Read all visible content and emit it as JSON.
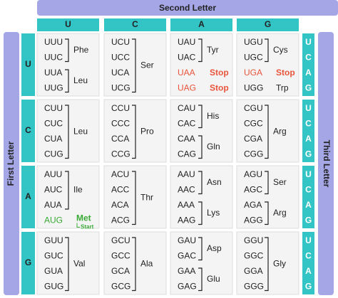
{
  "header": {
    "second_letter": "Second Letter",
    "columns": [
      "U",
      "C",
      "A",
      "G"
    ]
  },
  "first_letter_label": "First Letter",
  "third_letter_label": "Third Letter",
  "rows": [
    {
      "letter": "U",
      "third_letters": [
        "U",
        "C",
        "A",
        "G"
      ],
      "cells": [
        {
          "groups": [
            {
              "codons": [
                "UUU",
                "UUC"
              ],
              "label": "Phe"
            },
            {
              "codons": [
                "UUA",
                "UUG"
              ],
              "label": "Leu"
            }
          ]
        },
        {
          "groups": [
            {
              "codons": [
                "UCU",
                "UCC",
                "UCA",
                "UCG"
              ],
              "label": "Ser"
            }
          ]
        },
        {
          "groups": [
            {
              "codons": [
                "UAU",
                "UAC"
              ],
              "label": "Tyr"
            },
            {
              "codons": [
                "UAA"
              ],
              "label": "Stop",
              "color": "#e8553c"
            },
            {
              "codons": [
                "UAG"
              ],
              "label": "Stop",
              "color": "#e8553c"
            }
          ]
        },
        {
          "groups": [
            {
              "codons": [
                "UGU",
                "UGC"
              ],
              "label": "Cys"
            },
            {
              "codons": [
                "UGA"
              ],
              "label": "Stop",
              "color": "#e8553c"
            },
            {
              "codons": [
                "UGG"
              ],
              "label": "Trp"
            }
          ]
        }
      ]
    },
    {
      "letter": "C",
      "third_letters": [
        "U",
        "C",
        "A",
        "G"
      ],
      "cells": [
        {
          "groups": [
            {
              "codons": [
                "CUU",
                "CUC",
                "CUA",
                "CUG"
              ],
              "label": "Leu"
            }
          ]
        },
        {
          "groups": [
            {
              "codons": [
                "CCU",
                "CCC",
                "CCA",
                "CCG"
              ],
              "label": "Pro"
            }
          ]
        },
        {
          "groups": [
            {
              "codons": [
                "CAU",
                "CAC"
              ],
              "label": "His"
            },
            {
              "codons": [
                "CAA",
                "CAG"
              ],
              "label": "Gln"
            }
          ]
        },
        {
          "groups": [
            {
              "codons": [
                "CGU",
                "CGC",
                "CGA",
                "CGG"
              ],
              "label": "Arg"
            }
          ]
        }
      ]
    },
    {
      "letter": "A",
      "third_letters": [
        "U",
        "C",
        "A",
        "G"
      ],
      "cells": [
        {
          "groups": [
            {
              "codons": [
                "AUU",
                "AUC",
                "AUA"
              ],
              "label": "Ile"
            },
            {
              "codons": [
                "AUG"
              ],
              "label": "Met",
              "sublabel": "Start",
              "color": "#3aaa35"
            }
          ]
        },
        {
          "groups": [
            {
              "codons": [
                "ACU",
                "ACC",
                "ACA",
                "ACG"
              ],
              "label": "Thr"
            }
          ]
        },
        {
          "groups": [
            {
              "codons": [
                "AAU",
                "AAC"
              ],
              "label": "Asn"
            },
            {
              "codons": [
                "AAA",
                "AAG"
              ],
              "label": "Lys"
            }
          ]
        },
        {
          "groups": [
            {
              "codons": [
                "AGU",
                "AGC"
              ],
              "label": "Ser"
            },
            {
              "codons": [
                "AGA",
                "AGG"
              ],
              "label": "Arg"
            }
          ]
        }
      ]
    },
    {
      "letter": "G",
      "third_letters": [
        "U",
        "C",
        "A",
        "G"
      ],
      "cells": [
        {
          "groups": [
            {
              "codons": [
                "GUU",
                "GUC",
                "GUA",
                "GUG"
              ],
              "label": "Val"
            }
          ]
        },
        {
          "groups": [
            {
              "codons": [
                "GCU",
                "GCC",
                "GCA",
                "GCG"
              ],
              "label": "Ala"
            }
          ]
        },
        {
          "groups": [
            {
              "codons": [
                "GAU",
                "GAC"
              ],
              "label": "Asp"
            },
            {
              "codons": [
                "GAA",
                "GAG"
              ],
              "label": "Glu"
            }
          ]
        },
        {
          "groups": [
            {
              "codons": [
                "GGU",
                "GGC",
                "GGA",
                "GGG"
              ],
              "label": "Gly"
            }
          ]
        }
      ]
    }
  ]
}
